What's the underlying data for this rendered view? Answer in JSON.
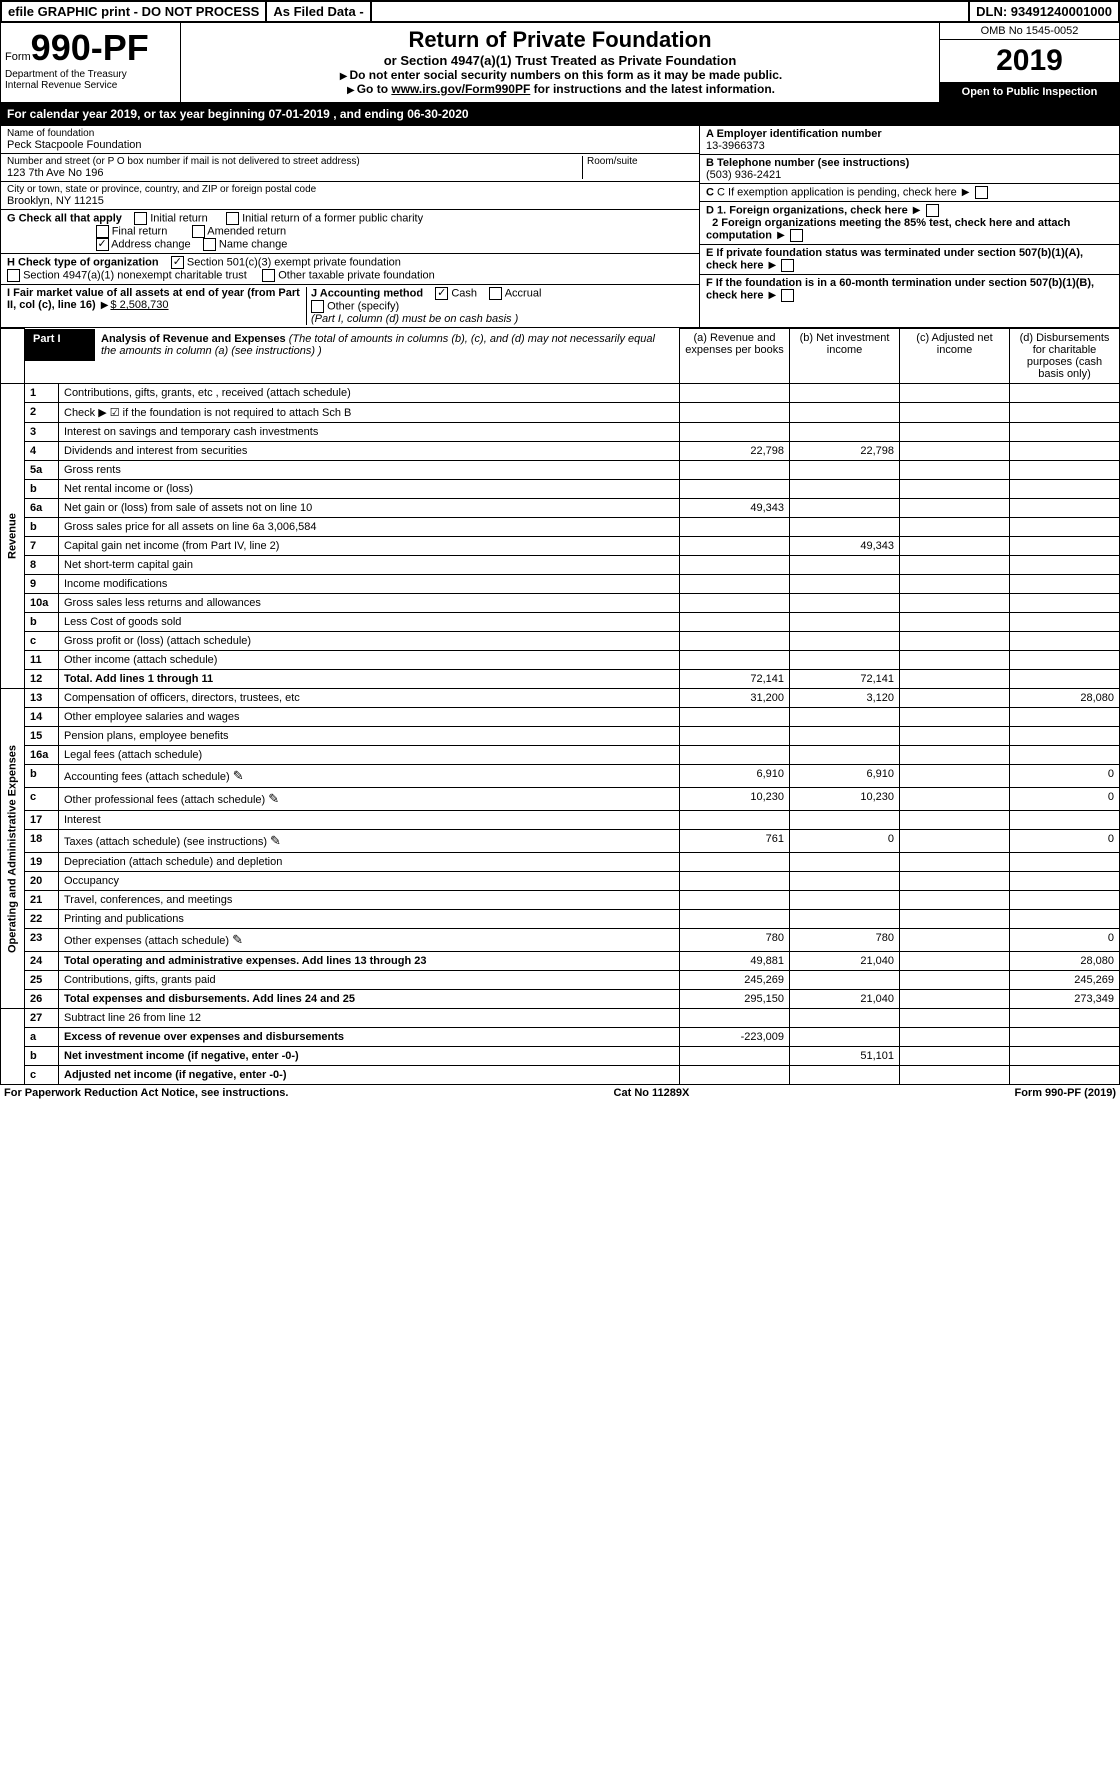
{
  "top": {
    "efile": "efile GRAPHIC print - DO NOT PROCESS",
    "asfiled": "As Filed Data -",
    "dln": "DLN: 93491240001000"
  },
  "header": {
    "form_prefix": "Form",
    "form_no": "990-PF",
    "dept1": "Department of the Treasury",
    "dept2": "Internal Revenue Service",
    "title": "Return of Private Foundation",
    "sub": "or Section 4947(a)(1) Trust Treated as Private Foundation",
    "note1": "Do not enter social security numbers on this form as it may be made public.",
    "note2_pre": "Go to ",
    "note2_link": "www.irs.gov/Form990PF",
    "note2_post": " for instructions and the latest information.",
    "omb": "OMB No 1545-0052",
    "year": "2019",
    "open": "Open to Public Inspection"
  },
  "cal": {
    "pre": "For calendar year 2019, or tax year beginning ",
    "begin": "07-01-2019",
    "mid": " , and ending ",
    "end": "06-30-2020"
  },
  "info": {
    "name_label": "Name of foundation",
    "name": "Peck Stacpoole Foundation",
    "addr_label": "Number and street (or P O  box number if mail is not delivered to street address)",
    "room_label": "Room/suite",
    "addr": "123 7th Ave No 196",
    "city_label": "City or town, state or province, country, and ZIP or foreign postal code",
    "city": "Brooklyn, NY  11215",
    "A_label": "A Employer identification number",
    "A_val": "13-3966373",
    "B_label": "B Telephone number (see instructions)",
    "B_val": "(503) 936-2421",
    "C_label": "C If exemption application is pending, check here",
    "D1": "D 1. Foreign organizations, check here",
    "D2": "2 Foreign organizations meeting the 85% test, check here and attach computation",
    "E": "E  If private foundation status was terminated under section 507(b)(1)(A), check here",
    "F": "F  If the foundation is in a 60-month termination under section 507(b)(1)(B), check here",
    "G_label": "G Check all that apply",
    "G_initial": "Initial return",
    "G_final": "Final return",
    "G_addr": "Address change",
    "G_initial_former": "Initial return of a former public charity",
    "G_amended": "Amended return",
    "G_namechg": "Name change",
    "H_label": "H Check type of organization",
    "H_501c3": "Section 501(c)(3) exempt private foundation",
    "H_4947": "Section 4947(a)(1) nonexempt charitable trust",
    "H_other": "Other taxable private foundation",
    "I_label": "I Fair market value of all assets at end of year (from Part II, col  (c), line 16) ",
    "I_val": "$  2,508,730",
    "J_label": "J Accounting method",
    "J_cash": "Cash",
    "J_accrual": "Accrual",
    "J_other": "Other (specify)",
    "J_note": "(Part I, column (d) must be on cash basis )"
  },
  "part1": {
    "label": "Part I",
    "title": "Analysis of Revenue and Expenses",
    "note": " (The total of amounts in columns (b), (c), and (d) may not necessarily equal the amounts in column (a) (see instructions) )",
    "col_a": "(a)  Revenue and expenses per books",
    "col_b": "(b)  Net investment income",
    "col_c": "(c)  Adjusted net income",
    "col_d": "(d)  Disbursements for charitable purposes (cash basis only)"
  },
  "sections": {
    "revenue": "Revenue",
    "expenses": "Operating and Administrative Expenses"
  },
  "rows": [
    {
      "n": "1",
      "d": "Contributions, gifts, grants, etc , received (attach schedule)"
    },
    {
      "n": "2",
      "d": "Check ▶ ☑ if the foundation is not required to attach Sch B"
    },
    {
      "n": "3",
      "d": "Interest on savings and temporary cash investments"
    },
    {
      "n": "4",
      "d": "Dividends and interest from securities",
      "a": "22,798",
      "b": "22,798"
    },
    {
      "n": "5a",
      "d": "Gross rents"
    },
    {
      "n": "b",
      "d": "Net rental income or (loss)"
    },
    {
      "n": "6a",
      "d": "Net gain or (loss) from sale of assets not on line 10",
      "a": "49,343"
    },
    {
      "n": "b",
      "d": "Gross sales price for all assets on line 6a        3,006,584"
    },
    {
      "n": "7",
      "d": "Capital gain net income (from Part IV, line 2)",
      "b": "49,343"
    },
    {
      "n": "8",
      "d": "Net short-term capital gain"
    },
    {
      "n": "9",
      "d": "Income modifications"
    },
    {
      "n": "10a",
      "d": "Gross sales less returns and allowances"
    },
    {
      "n": "b",
      "d": "Less  Cost of goods sold"
    },
    {
      "n": "c",
      "d": "Gross profit or (loss) (attach schedule)"
    },
    {
      "n": "11",
      "d": "Other income (attach schedule)"
    },
    {
      "n": "12",
      "d": "Total. Add lines 1 through 11",
      "a": "72,141",
      "b": "72,141",
      "bold": true
    }
  ],
  "exp_rows": [
    {
      "n": "13",
      "d": "Compensation of officers, directors, trustees, etc",
      "a": "31,200",
      "b": "3,120",
      "dd": "28,080"
    },
    {
      "n": "14",
      "d": "Other employee salaries and wages"
    },
    {
      "n": "15",
      "d": "Pension plans, employee benefits"
    },
    {
      "n": "16a",
      "d": "Legal fees (attach schedule)"
    },
    {
      "n": "b",
      "d": "Accounting fees (attach schedule)",
      "icon": true,
      "a": "6,910",
      "b": "6,910",
      "dd": "0"
    },
    {
      "n": "c",
      "d": "Other professional fees (attach schedule)",
      "icon": true,
      "a": "10,230",
      "b": "10,230",
      "dd": "0"
    },
    {
      "n": "17",
      "d": "Interest"
    },
    {
      "n": "18",
      "d": "Taxes (attach schedule) (see instructions)",
      "icon": true,
      "a": "761",
      "b": "0",
      "dd": "0"
    },
    {
      "n": "19",
      "d": "Depreciation (attach schedule) and depletion"
    },
    {
      "n": "20",
      "d": "Occupancy"
    },
    {
      "n": "21",
      "d": "Travel, conferences, and meetings"
    },
    {
      "n": "22",
      "d": "Printing and publications"
    },
    {
      "n": "23",
      "d": "Other expenses (attach schedule)",
      "icon": true,
      "a": "780",
      "b": "780",
      "dd": "0"
    },
    {
      "n": "24",
      "d": "Total operating and administrative expenses. Add lines 13 through 23",
      "a": "49,881",
      "b": "21,040",
      "dd": "28,080",
      "bold": true
    },
    {
      "n": "25",
      "d": "Contributions, gifts, grants paid",
      "a": "245,269",
      "dd": "245,269"
    },
    {
      "n": "26",
      "d": "Total expenses and disbursements. Add lines 24 and 25",
      "a": "295,150",
      "b": "21,040",
      "dd": "273,349",
      "bold": true
    }
  ],
  "bottom_rows": [
    {
      "n": "27",
      "d": "Subtract line 26 from line 12"
    },
    {
      "n": "a",
      "d": "Excess of revenue over expenses and disbursements",
      "a": "-223,009",
      "bold": true
    },
    {
      "n": "b",
      "d": "Net investment income (if negative, enter -0-)",
      "b": "51,101",
      "bold": true
    },
    {
      "n": "c",
      "d": "Adjusted net income (if negative, enter -0-)",
      "bold": true
    }
  ],
  "footer": {
    "left": "For Paperwork Reduction Act Notice, see instructions.",
    "mid": "Cat  No  11289X",
    "right": "Form 990-PF (2019)"
  }
}
